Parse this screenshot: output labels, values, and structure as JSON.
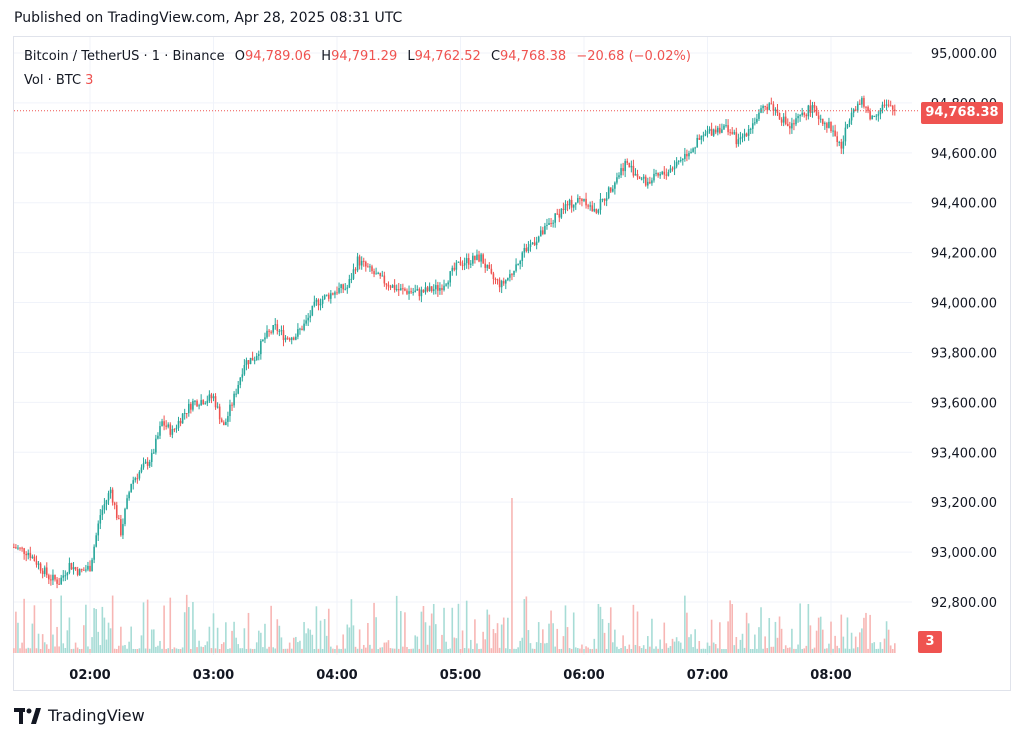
{
  "header": {
    "published": "Published on TradingView.com, Apr 28, 2025 08:31 UTC"
  },
  "legend": {
    "symbol": "Bitcoin / TetherUS · 1 · Binance",
    "o_label": "O",
    "o_value": "94,789.06",
    "h_label": "H",
    "h_value": "94,791.29",
    "l_label": "L",
    "l_value": "94,762.52",
    "c_label": "C",
    "c_value": "94,768.38",
    "change": "−20.68 (−0.02%)",
    "vol_label": "Vol · BTC",
    "vol_value": "3"
  },
  "price_tag": "94,768.38",
  "vol_tag": "3",
  "brand": {
    "name": "TradingView"
  },
  "colors": {
    "up": "#26a69a",
    "down": "#ef5350",
    "grid": "#f0f3fa",
    "text": "#131722"
  },
  "chart_data": {
    "type": "candlestick",
    "symbol": "Bitcoin / TetherUS",
    "interval": "1",
    "exchange": "Binance",
    "y_ticks": [
      "95,000.00",
      "94,800.00",
      "94,600.00",
      "94,400.00",
      "94,200.00",
      "94,000.00",
      "93,800.00",
      "93,600.00",
      "93,400.00",
      "93,200.00",
      "93,000.00",
      "92,800.00"
    ],
    "y_tick_values": [
      95000,
      94800,
      94600,
      94400,
      94200,
      94000,
      93800,
      93600,
      93400,
      93200,
      93000,
      92800
    ],
    "x_ticks": [
      "02:00",
      "03:00",
      "04:00",
      "05:00",
      "06:00",
      "07:00",
      "08:00"
    ],
    "ylim": [
      92800,
      95000
    ],
    "last_price": 94768.38,
    "last_ohlc": {
      "open": 94789.06,
      "high": 94791.29,
      "low": 94762.52,
      "close": 94768.38
    },
    "series": [
      {
        "name": "close (approx)",
        "time": [
          "01:23",
          "01:30",
          "01:40",
          "01:45",
          "01:50",
          "01:55",
          "02:00",
          "02:05",
          "02:10",
          "02:15",
          "02:20",
          "02:30",
          "02:35",
          "02:40",
          "02:45",
          "02:50",
          "03:00",
          "03:05",
          "03:10",
          "03:15",
          "03:20",
          "03:25",
          "03:30",
          "03:35",
          "03:40",
          "03:45",
          "03:50",
          "04:00",
          "04:05",
          "04:10",
          "04:20",
          "04:30",
          "04:40",
          "04:50",
          "05:00",
          "05:10",
          "05:15",
          "05:20",
          "05:25",
          "05:30",
          "05:40",
          "05:50",
          "06:00",
          "06:05",
          "06:10",
          "06:20",
          "06:30",
          "06:40",
          "06:50",
          "07:00",
          "07:05",
          "07:10",
          "07:15",
          "07:20",
          "07:30",
          "07:40",
          "07:50",
          "08:00",
          "08:05",
          "08:10",
          "08:15",
          "08:20",
          "08:25",
          "08:31"
        ],
        "close": [
          93020,
          93000,
          92900,
          92880,
          92950,
          92920,
          92940,
          93150,
          93250,
          93080,
          93280,
          93380,
          93520,
          93480,
          93550,
          93600,
          93620,
          93500,
          93620,
          93760,
          93780,
          93860,
          93900,
          93860,
          93870,
          93920,
          94000,
          94050,
          94060,
          94170,
          94100,
          94050,
          94040,
          94060,
          94160,
          94180,
          94100,
          94070,
          94120,
          94200,
          94280,
          94380,
          94420,
          94360,
          94420,
          94560,
          94480,
          94520,
          94600,
          94680,
          94700,
          94700,
          94640,
          94700,
          94800,
          94700,
          94780,
          94700,
          94620,
          94780,
          94800,
          94740,
          94790,
          94768
        ]
      }
    ],
    "volume": {
      "label": "Vol · BTC",
      "last": 3,
      "spike_time": "05:25",
      "spike_value": 60
    }
  }
}
